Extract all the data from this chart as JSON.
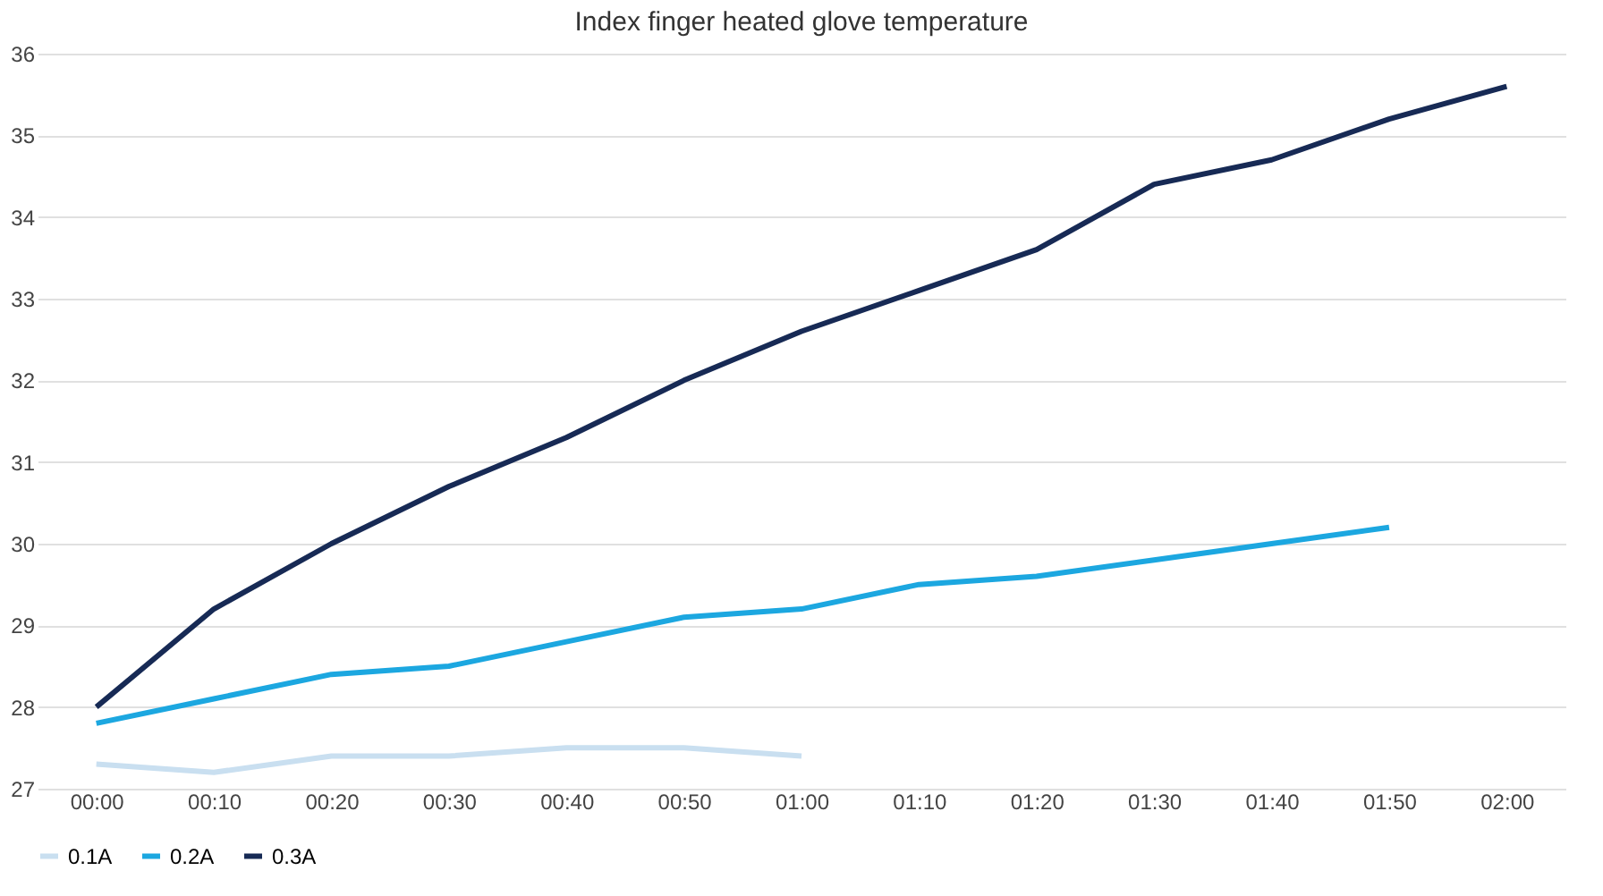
{
  "chart_data": {
    "type": "line",
    "title": "Index finger heated glove temperature",
    "categories": [
      "00:00",
      "00:10",
      "00:20",
      "00:30",
      "00:40",
      "00:50",
      "01:00",
      "01:10",
      "01:20",
      "01:30",
      "01:40",
      "01:50",
      "02:00"
    ],
    "series": [
      {
        "name": "0.1A",
        "color": "#c9dff0",
        "values": [
          27.3,
          27.2,
          27.4,
          27.4,
          27.5,
          27.5,
          27.4,
          null,
          null,
          null,
          null,
          null,
          null
        ]
      },
      {
        "name": "0.2A",
        "color": "#1ca7e0",
        "values": [
          27.8,
          28.1,
          28.4,
          28.5,
          28.8,
          29.1,
          29.2,
          29.5,
          29.6,
          29.8,
          30.0,
          30.2,
          null
        ]
      },
      {
        "name": "0.3A",
        "color": "#172a55",
        "values": [
          28.0,
          29.2,
          30.0,
          30.7,
          31.3,
          32.0,
          32.6,
          33.1,
          33.6,
          34.4,
          34.7,
          35.2,
          35.6
        ]
      }
    ],
    "ylim": [
      27,
      36
    ],
    "yticks": [
      27,
      28,
      29,
      30,
      31,
      32,
      33,
      34,
      35,
      36
    ],
    "grid": "y",
    "legend": "bottom",
    "marker": "none",
    "line_style": "solid"
  }
}
